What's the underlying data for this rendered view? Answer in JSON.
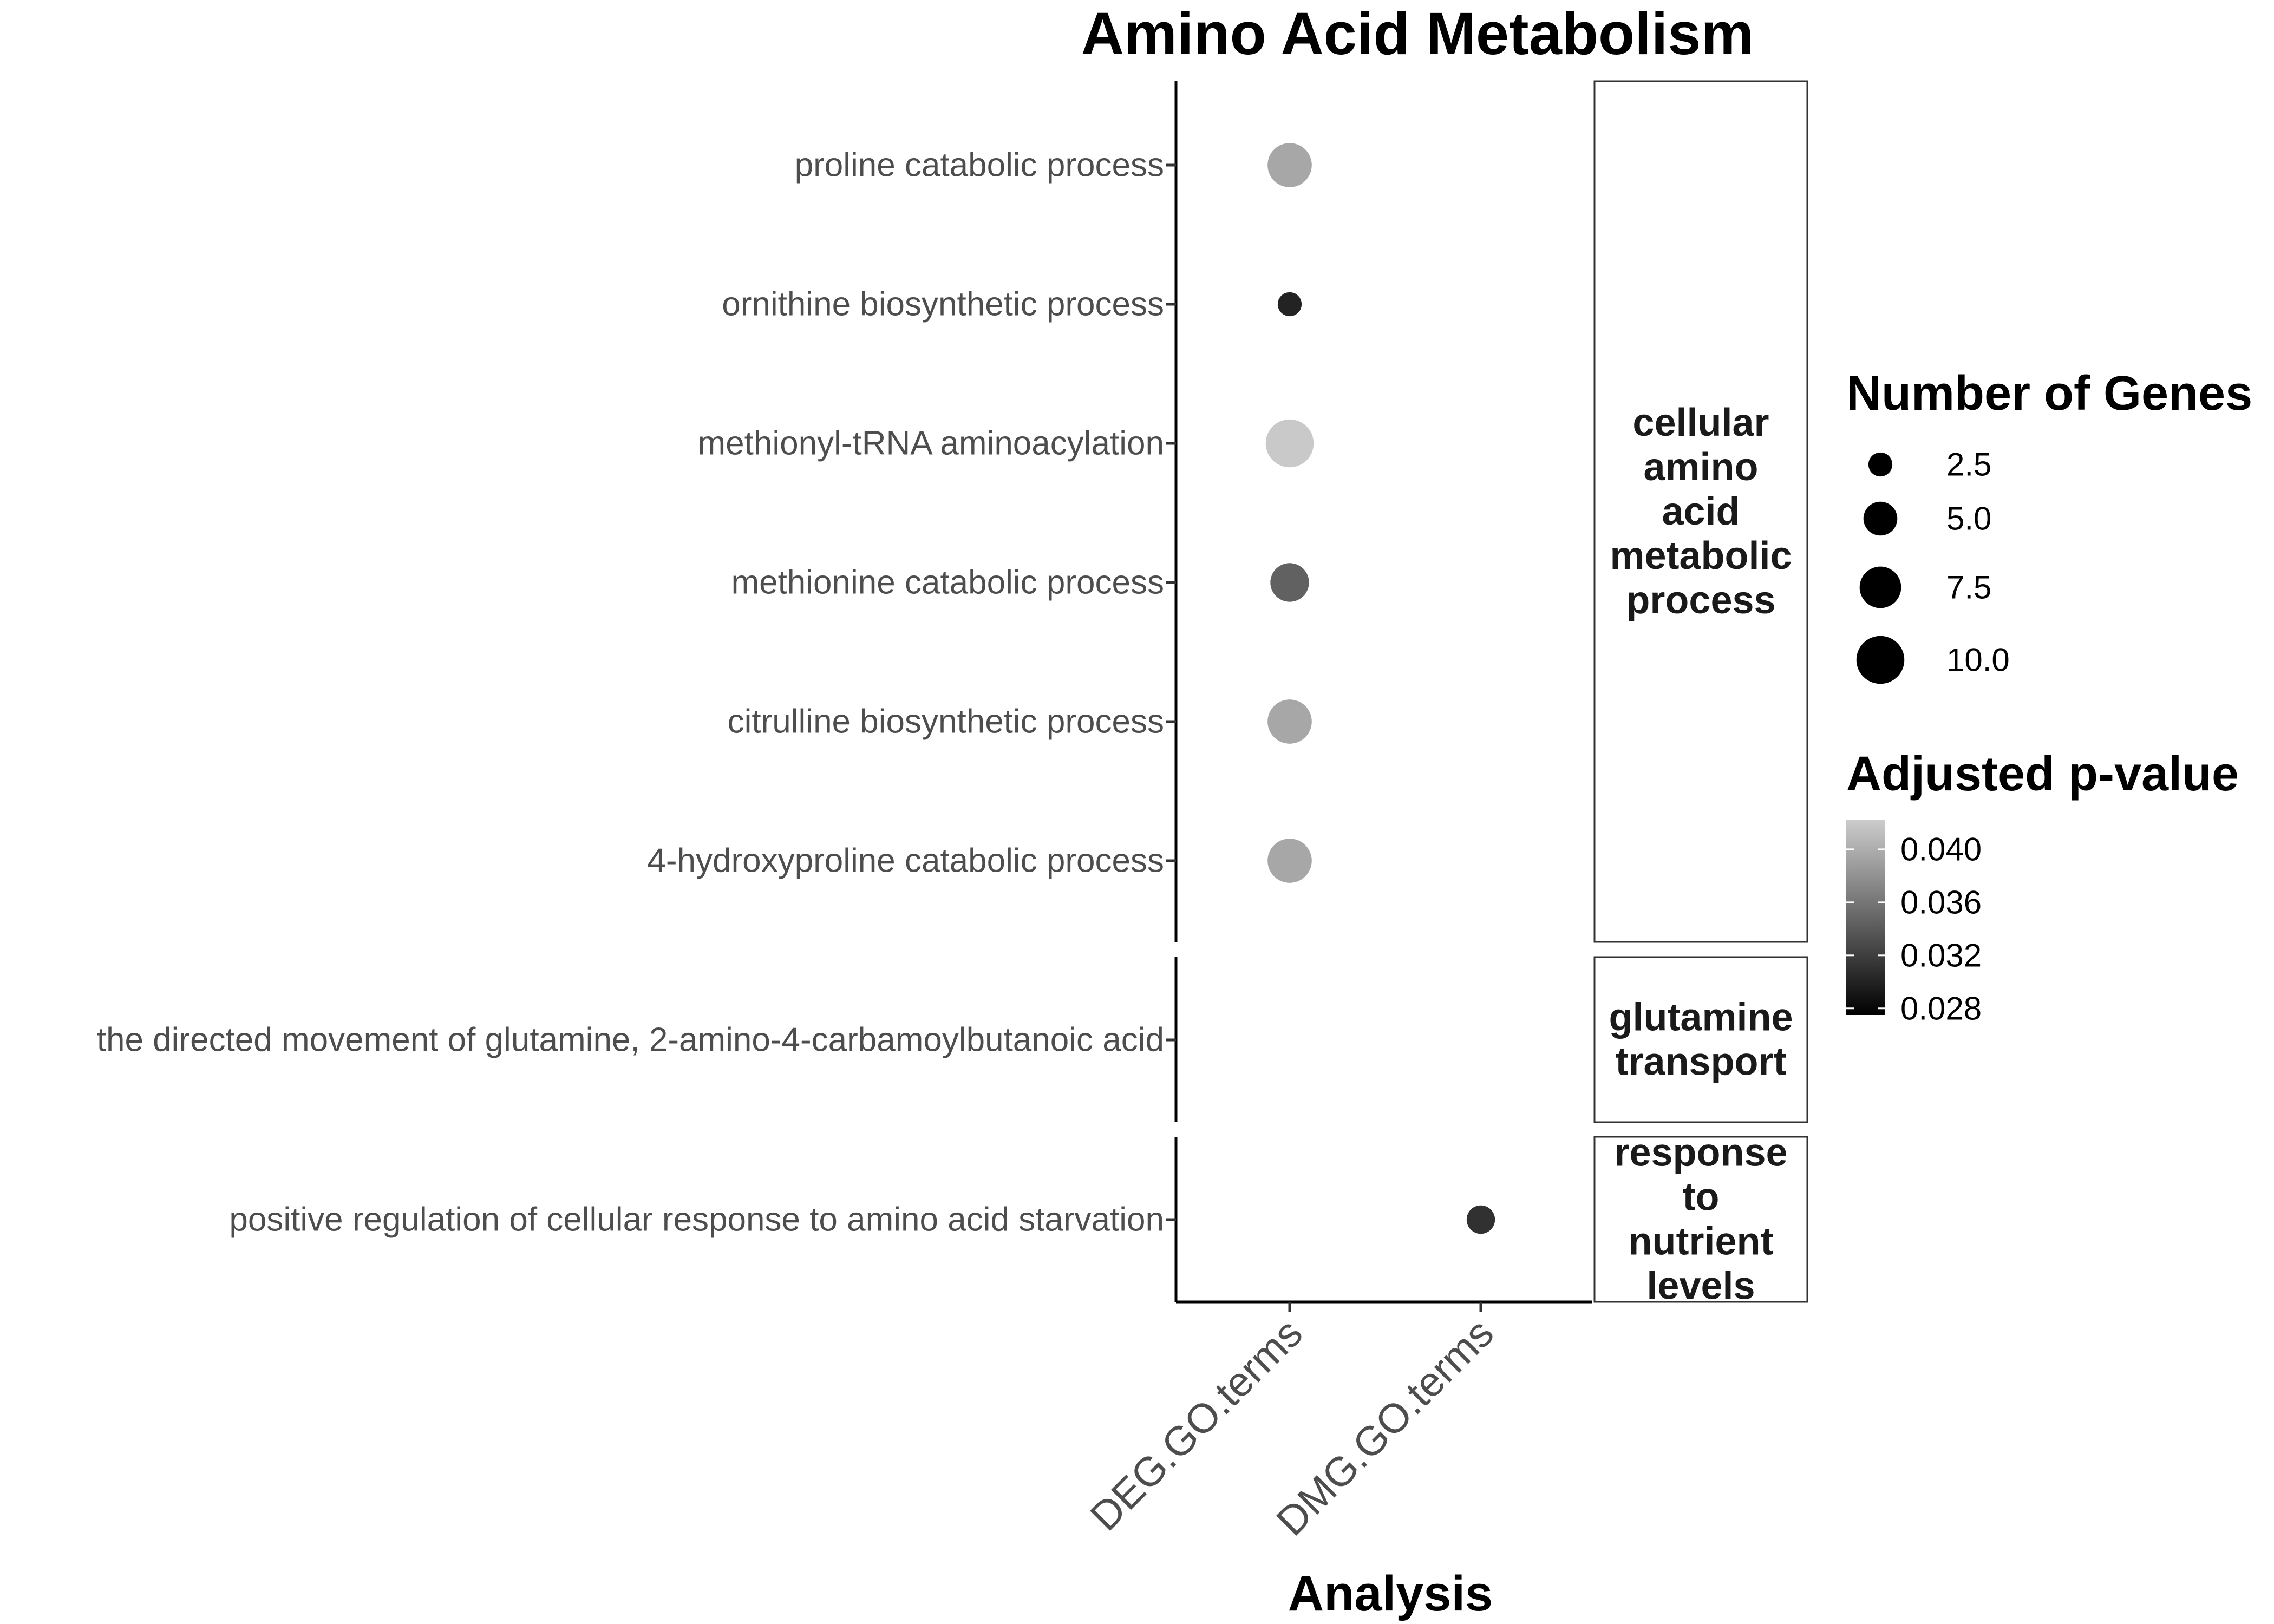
{
  "chart_data": {
    "type": "scatter",
    "title": "Amino Acid Metabolism",
    "xlabel": "Analysis",
    "ylabel": "",
    "categories": [
      "DEG.GO.terms",
      "DMG.GO.terms"
    ],
    "panels": [
      {
        "label_lines": [
          "cellular",
          "amino",
          "acid",
          "metabolic",
          "process"
        ],
        "terms": [
          "proline catabolic process",
          "ornithine biosynthetic process",
          "methionyl-tRNA aminoacylation",
          "methionine catabolic process",
          "citrulline biosynthetic process",
          "4-hydroxyproline catabolic process"
        ]
      },
      {
        "label_lines": [
          "glutamine",
          "transport"
        ],
        "terms": [
          "the directed movement of glutamine, 2-amino-4-carbamoylbutanoic acid"
        ]
      },
      {
        "label_lines": [
          "response",
          "to",
          "nutrient",
          "levels"
        ],
        "terms": [
          "positive regulation of cellular response to amino acid starvation"
        ]
      }
    ],
    "points": [
      {
        "term": "proline catabolic process",
        "analysis": "DEG.GO.terms",
        "genes": 8.5,
        "padj": 0.0395
      },
      {
        "term": "ornithine biosynthetic process",
        "analysis": "DEG.GO.terms",
        "genes": 2.5,
        "padj": 0.03
      },
      {
        "term": "methionyl-tRNA aminoacylation",
        "analysis": "DEG.GO.terms",
        "genes": 10.0,
        "padj": 0.042
      },
      {
        "term": "methionine catabolic process",
        "analysis": "DEG.GO.terms",
        "genes": 6.5,
        "padj": 0.0345
      },
      {
        "term": "citrulline biosynthetic process",
        "analysis": "DEG.GO.terms",
        "genes": 8.5,
        "padj": 0.0395
      },
      {
        "term": "4-hydroxyproline catabolic process",
        "analysis": "DEG.GO.terms",
        "genes": 8.5,
        "padj": 0.0395
      },
      {
        "term": "positive regulation of cellular response to amino acid starvation",
        "analysis": "DMG.GO.terms",
        "genes": 3.5,
        "padj": 0.031
      }
    ],
    "size_legend": {
      "title": "Number of Genes",
      "breaks": [
        2.5,
        5.0,
        7.5,
        10.0
      ],
      "labels": [
        "2.5",
        "5.0",
        "7.5",
        "10.0"
      ]
    },
    "color_legend": {
      "title": "Adjusted p-value",
      "range": [
        0.0275,
        0.0422
      ],
      "breaks": [
        0.04,
        0.036,
        0.032,
        0.028
      ],
      "labels": [
        "0.040",
        "0.036",
        "0.032",
        "0.028"
      ],
      "low_color": "#000000",
      "high_color": "#cccccc"
    },
    "grid": false,
    "legend_position": "right"
  }
}
